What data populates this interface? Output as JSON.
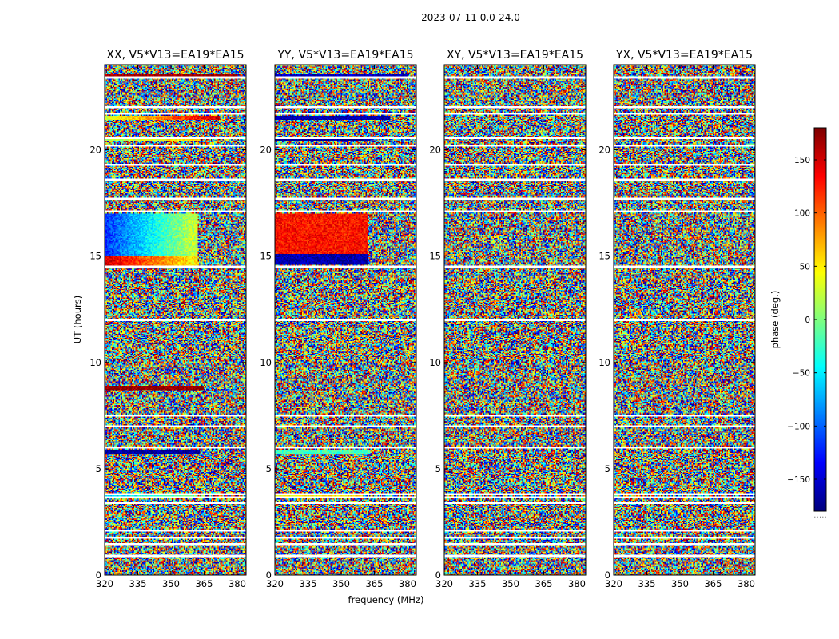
{
  "figure": {
    "suptitle": "2023-07-11 0.0-24.0"
  },
  "colors": {
    "gap": "#ffffff",
    "axis": "#000000",
    "colormap": [
      "#00007f",
      "#0000ff",
      "#007fff",
      "#00ffff",
      "#7fff7f",
      "#ffff00",
      "#ff7f00",
      "#ff0000",
      "#7f0000"
    ]
  },
  "chart_data": {
    "type": "heatmap",
    "colormap": "jet",
    "xlabel": "frequency (MHz)",
    "ylabel": "UT (hours)",
    "xlim": [
      320,
      384
    ],
    "ylim": [
      0,
      24
    ],
    "x_ticks": [
      320,
      335,
      350,
      365,
      380
    ],
    "y_ticks": [
      0,
      5,
      10,
      15,
      20
    ],
    "colorbar": {
      "label": "phase (deg.)",
      "range": [
        -180,
        180
      ],
      "ticks": [
        -150,
        -100,
        -50,
        0,
        50,
        100,
        150
      ],
      "tick_labels": [
        "−150",
        "−100",
        "−50",
        "0",
        "50",
        "100",
        "150"
      ],
      "dots": "....."
    },
    "flagged_ut_hours": [
      0.9,
      1.45,
      1.75,
      2.1,
      3.4,
      3.65,
      3.8,
      6.0,
      7.0,
      7.5,
      12.0,
      14.5,
      17.1,
      17.7,
      18.6,
      19.3,
      20.2,
      20.55,
      21.7,
      22.0,
      23.4
    ],
    "panels": [
      {
        "title": "XX, V5*V13=EA19*EA15",
        "features": [
          {
            "ut": [
              14.5,
              15.0
            ],
            "mhz": [
              320,
              362
            ],
            "phase": [
              150,
              45
            ]
          },
          {
            "ut": [
              15.0,
              17.0
            ],
            "mhz": [
              320,
              362
            ],
            "phase": [
              -120,
              30
            ]
          },
          {
            "ut": [
              8.7,
              8.9
            ],
            "mhz": [
              320,
              365
            ],
            "phase": [
              175,
              175
            ]
          },
          {
            "ut": [
              5.7,
              5.9
            ],
            "mhz": [
              320,
              363
            ],
            "phase": [
              -170,
              -170
            ]
          },
          {
            "ut": [
              21.4,
              21.6
            ],
            "mhz": [
              320,
              372
            ],
            "phase": [
              30,
              155
            ]
          },
          {
            "ut": [
              20.4,
              20.55
            ],
            "mhz": [
              320,
              363
            ],
            "phase": [
              10,
              60
            ]
          },
          {
            "ut": [
              23.4,
              23.55
            ],
            "mhz": [
              320,
              380
            ],
            "phase": [
              170,
              170
            ]
          },
          {
            "ut": [
              3.7,
              3.85
            ],
            "mhz": [
              320,
              360
            ],
            "phase": [
              -60,
              -10
            ]
          }
        ]
      },
      {
        "title": "YY, V5*V13=EA19*EA15",
        "features": [
          {
            "ut": [
              14.6,
              15.1
            ],
            "mhz": [
              320,
              362
            ],
            "phase": [
              -165,
              -165
            ]
          },
          {
            "ut": [
              15.1,
              17.0
            ],
            "mhz": [
              320,
              362
            ],
            "phase": [
              130,
              130
            ]
          },
          {
            "ut": [
              21.4,
              21.6
            ],
            "mhz": [
              320,
              372
            ],
            "phase": [
              -165,
              -165
            ]
          },
          {
            "ut": [
              20.4,
              20.55
            ],
            "mhz": [
              320,
              363
            ],
            "phase": [
              -175,
              -175
            ]
          },
          {
            "ut": [
              23.4,
              23.55
            ],
            "mhz": [
              320,
              380
            ],
            "phase": [
              -160,
              -160
            ]
          },
          {
            "ut": [
              5.7,
              5.9
            ],
            "mhz": [
              320,
              363
            ],
            "phase": [
              -20,
              -20
            ]
          },
          {
            "ut": [
              3.7,
              3.85
            ],
            "mhz": [
              320,
              360
            ],
            "phase": [
              40,
              60
            ]
          }
        ]
      },
      {
        "title": "XY, V5*V13=EA19*EA15",
        "features": []
      },
      {
        "title": "YX, V5*V13=EA19*EA15",
        "features": []
      }
    ]
  }
}
